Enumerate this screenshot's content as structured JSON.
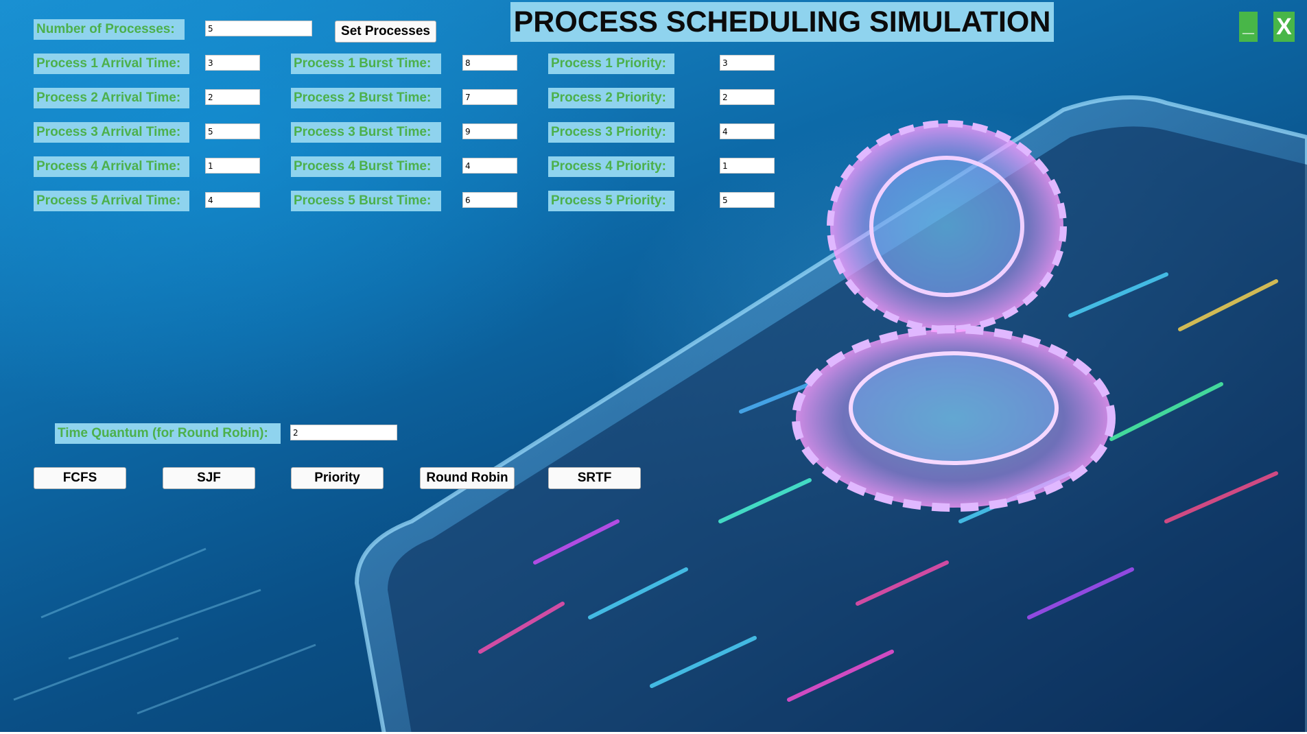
{
  "title": "PROCESS SCHEDULING SIMULATION",
  "window_controls": {
    "minimize": "_",
    "close": "X"
  },
  "num_processes": {
    "label": "Number of Processes:",
    "value": "5",
    "button": "Set Processes"
  },
  "processes": [
    {
      "arrival_label": "Process 1 Arrival Time:",
      "arrival": "3",
      "burst_label": "Process 1 Burst Time:",
      "burst": "8",
      "priority_label": "Process 1 Priority:",
      "priority": "3"
    },
    {
      "arrival_label": "Process 2 Arrival Time:",
      "arrival": "2",
      "burst_label": "Process 2 Burst Time:",
      "burst": "7",
      "priority_label": "Process 2 Priority:",
      "priority": "2"
    },
    {
      "arrival_label": "Process 3 Arrival Time:",
      "arrival": "5",
      "burst_label": "Process 3 Burst Time:",
      "burst": "9",
      "priority_label": "Process 3 Priority:",
      "priority": "4"
    },
    {
      "arrival_label": "Process 4 Arrival Time:",
      "arrival": "1",
      "burst_label": "Process 4 Burst Time:",
      "burst": "4",
      "priority_label": "Process 4 Priority:",
      "priority": "1"
    },
    {
      "arrival_label": "Process 5 Arrival Time:",
      "arrival": "4",
      "burst_label": "Process 5 Burst Time:",
      "burst": "6",
      "priority_label": "Process 5 Priority:",
      "priority": "5"
    }
  ],
  "time_quantum": {
    "label": "Time Quantum (for Round Robin):",
    "value": "2"
  },
  "algorithms": {
    "fcfs": "FCFS",
    "sjf": "SJF",
    "priority": "Priority",
    "round_robin": "Round Robin",
    "srtf": "SRTF"
  },
  "colors": {
    "label_bg": "#8fd3ee",
    "label_text": "#4cb04c",
    "control_green": "#48b648",
    "background": "#0d6aa8"
  }
}
